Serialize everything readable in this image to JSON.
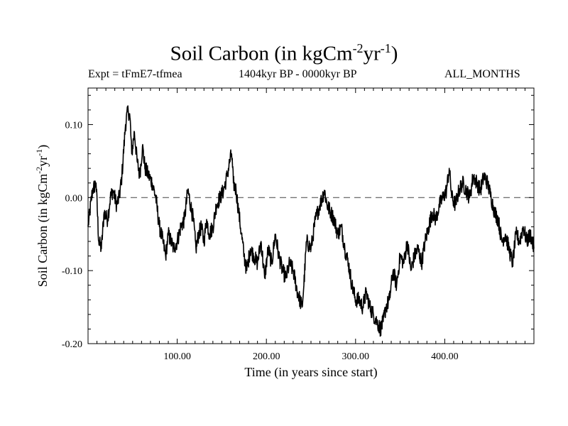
{
  "title": {
    "main": "Soil Carbon (in kgCm",
    "sup1": "-2",
    "mid": "yr",
    "sup2": "-1",
    "end": ")"
  },
  "subtitle": {
    "left": "Expt = tFmE7-tfmea",
    "center": "1404kyr BP - 0000kyr BP",
    "right": "ALL_MONTHS"
  },
  "chart_data": {
    "type": "line",
    "title": "Soil Carbon (in kgCm-2yr-1)",
    "xlabel": "Time (in years since start)",
    "ylabel": "Soil Carbon (in kgCm-2yr-1)",
    "xlim": [
      0,
      500
    ],
    "ylim": [
      -0.2,
      0.15
    ],
    "xticks": [
      {
        "v": 100,
        "label": "100.00"
      },
      {
        "v": 200,
        "label": "200.00"
      },
      {
        "v": 300,
        "label": "300.00"
      },
      {
        "v": 400,
        "label": "400.00"
      }
    ],
    "yticks": [
      {
        "v": 0.1,
        "label": "0.10"
      },
      {
        "v": 0.0,
        "label": "0.00"
      },
      {
        "v": -0.1,
        "label": "-0.10"
      },
      {
        "v": -0.2,
        "label": "-0.20"
      }
    ],
    "reference_line": {
      "y": 0.0,
      "style": "dashed"
    },
    "series": [
      {
        "name": "Soil Carbon",
        "x": [
          0,
          5,
          9,
          12,
          15,
          18,
          22,
          25,
          28,
          32,
          35,
          38,
          42,
          45,
          47,
          49,
          52,
          55,
          58,
          61,
          64,
          68,
          72,
          76,
          80,
          84,
          87,
          90,
          93,
          96,
          100,
          104,
          108,
          112,
          115,
          118,
          121,
          124,
          127,
          130,
          133,
          136,
          140,
          144,
          148,
          152,
          156,
          159,
          161,
          163,
          166,
          169,
          172,
          175,
          178,
          182,
          186,
          190,
          194,
          198,
          202,
          206,
          210,
          214,
          218,
          222,
          226,
          230,
          235,
          240,
          242,
          245,
          250,
          255,
          260,
          265,
          268,
          272,
          276,
          280,
          284,
          288,
          292,
          296,
          300,
          304,
          308,
          312,
          316,
          320,
          324,
          328,
          331,
          334,
          338,
          342,
          346,
          350,
          354,
          358,
          362,
          366,
          370,
          374,
          378,
          382,
          386,
          390,
          394,
          398,
          402,
          405,
          408,
          412,
          416,
          420,
          424,
          428,
          432,
          436,
          440,
          444,
          448,
          452,
          456,
          460,
          464,
          468,
          472,
          476,
          480,
          484,
          488,
          492,
          496,
          500
        ],
        "values": [
          -0.04,
          0.01,
          0.02,
          -0.06,
          -0.07,
          -0.02,
          -0.03,
          0.0,
          0.01,
          -0.01,
          0.0,
          0.03,
          0.1,
          0.12,
          0.11,
          0.06,
          0.09,
          0.05,
          0.03,
          0.07,
          0.04,
          0.03,
          0.02,
          0.0,
          -0.04,
          -0.06,
          -0.08,
          -0.05,
          -0.06,
          -0.07,
          -0.06,
          -0.04,
          -0.03,
          0.01,
          -0.01,
          -0.03,
          -0.07,
          -0.05,
          -0.04,
          -0.06,
          -0.03,
          -0.05,
          -0.04,
          -0.01,
          0.0,
          0.01,
          0.03,
          0.05,
          0.06,
          0.02,
          0.01,
          -0.02,
          -0.05,
          -0.08,
          -0.1,
          -0.07,
          -0.08,
          -0.09,
          -0.06,
          -0.11,
          -0.07,
          -0.09,
          -0.05,
          -0.08,
          -0.1,
          -0.11,
          -0.09,
          -0.1,
          -0.13,
          -0.15,
          -0.12,
          -0.06,
          -0.07,
          -0.03,
          -0.01,
          0.01,
          -0.01,
          -0.02,
          -0.03,
          -0.05,
          -0.04,
          -0.07,
          -0.09,
          -0.12,
          -0.14,
          -0.14,
          -0.15,
          -0.13,
          -0.15,
          -0.16,
          -0.17,
          -0.18,
          -0.17,
          -0.15,
          -0.14,
          -0.1,
          -0.12,
          -0.08,
          -0.09,
          -0.06,
          -0.1,
          -0.08,
          -0.07,
          -0.09,
          -0.06,
          -0.04,
          -0.02,
          -0.03,
          -0.01,
          0.0,
          0.01,
          0.04,
          0.0,
          -0.01,
          0.01,
          0.02,
          0.01,
          0.0,
          0.03,
          0.02,
          0.01,
          0.03,
          0.02,
          0.0,
          -0.02,
          -0.03,
          -0.06,
          -0.05,
          -0.07,
          -0.09,
          -0.05,
          -0.06,
          -0.04,
          -0.06,
          -0.05,
          -0.07
        ]
      }
    ]
  }
}
